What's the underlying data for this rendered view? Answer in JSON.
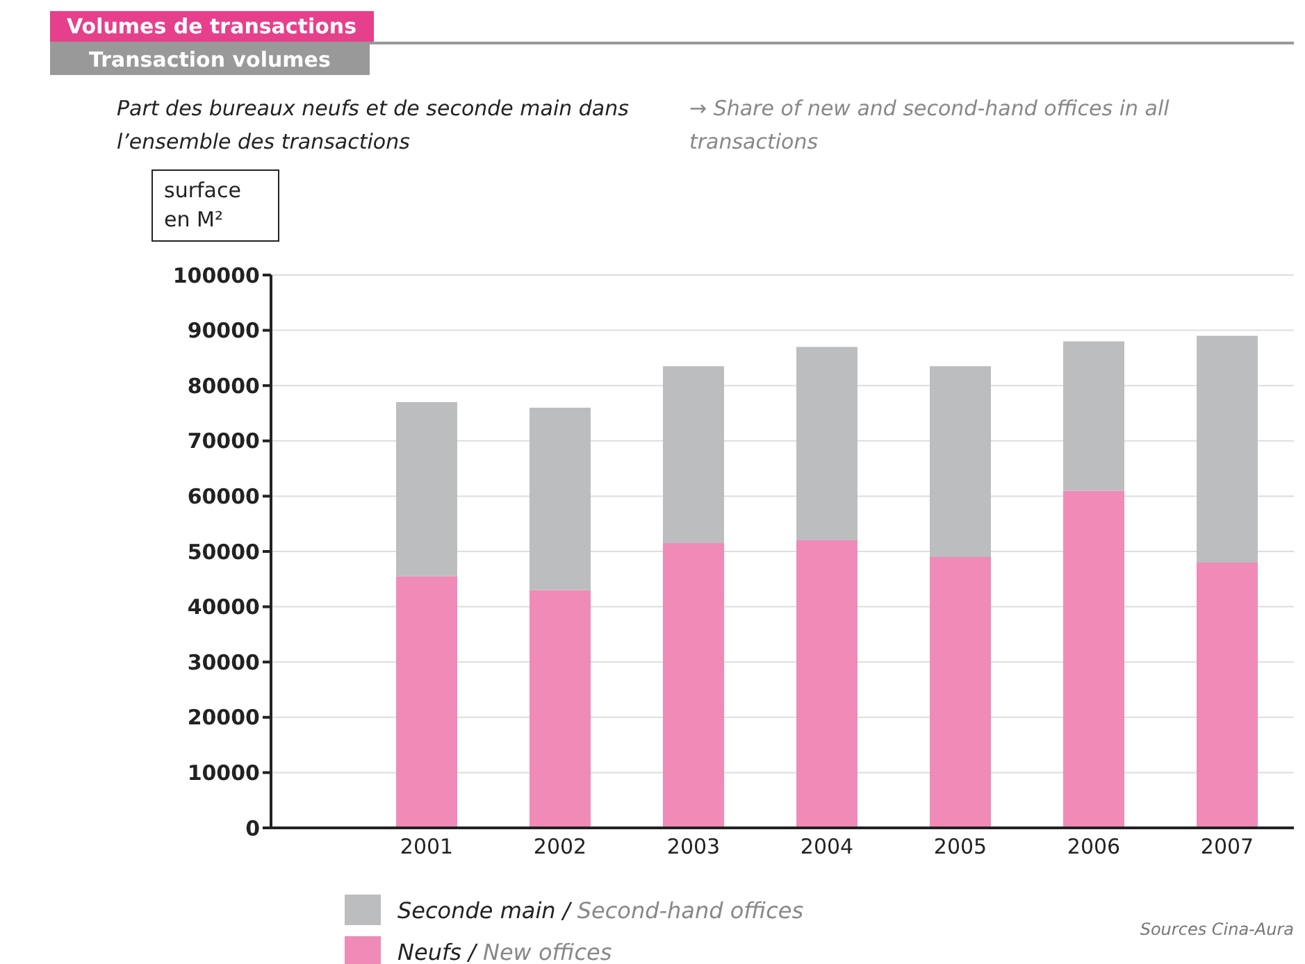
{
  "chart_data": {
    "type": "bar",
    "title": "Volumes de transactions",
    "subtitle": "Transaction volumes",
    "ylabel": "surface en M²",
    "annotations": [
      "Part des bureaux neufs et de seconde main dans l’ensemble des transactions",
      "→ Share of new and second-hand offices in all transactions",
      "Sources Cina-Aura"
    ],
    "categories": [
      "2001",
      "2002",
      "2003",
      "2004",
      "2005",
      "2006",
      "2007"
    ],
    "series": [
      {
        "name": "Neufs / New offices",
        "color": "#ef8bb6",
        "values": [
          45500,
          43000,
          51500,
          52000,
          49000,
          61000,
          48000
        ]
      },
      {
        "name": "Seconde main / Second-hand offices",
        "color": "#bcbdbf",
        "values": [
          31500,
          33000,
          32000,
          35000,
          34500,
          27000,
          41000
        ]
      }
    ],
    "stacked": true,
    "ylim": [
      0,
      100000
    ],
    "yticks": [
      0,
      10000,
      20000,
      30000,
      40000,
      50000,
      60000,
      70000,
      80000,
      90000,
      100000
    ],
    "grid": "y",
    "legend": "bottom"
  }
}
